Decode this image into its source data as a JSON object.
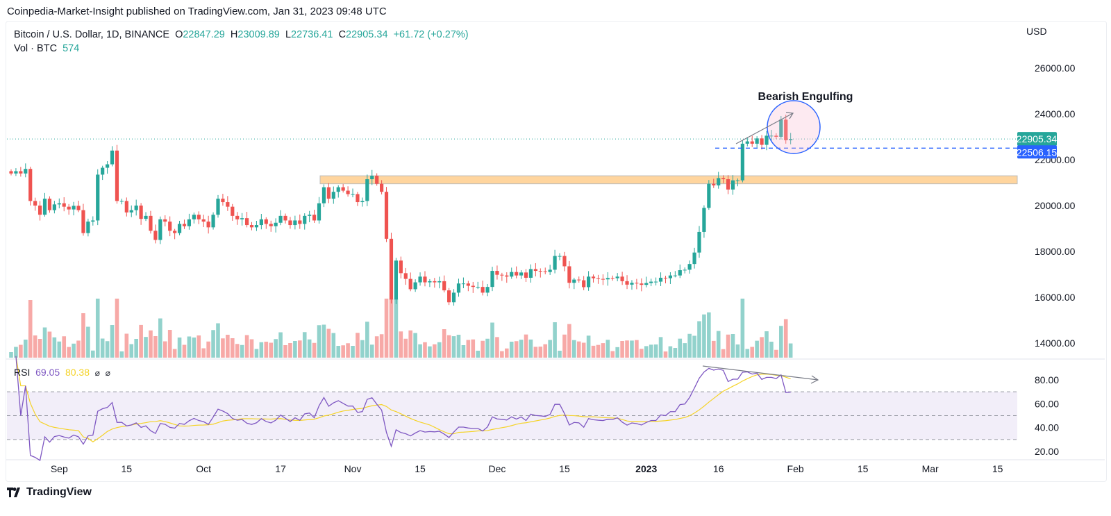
{
  "header": {
    "published": "Coinpedia-Market-Insight published on TradingView.com, Jan 31, 2023 09:48 UTC"
  },
  "legend": {
    "symbol": "Bitcoin / U.S. Dollar, 1D, BINANCE",
    "o_label": "O",
    "o": "22847.29",
    "h_label": "H",
    "h": "23009.89",
    "l_label": "L",
    "l": "22736.41",
    "c_label": "C",
    "c": "22905.34",
    "change": "+61.72 (+0.27%)",
    "vol_label": "Vol · BTC",
    "vol": "574"
  },
  "currency": "USD",
  "annotation": "Bearish Engulfing",
  "rsi_legend": {
    "label": "RSI",
    "value": "69.05",
    "ma": "80.38",
    "sym1": "⌀",
    "sym2": "⌀"
  },
  "footer": {
    "brand": "TradingView"
  },
  "colors": {
    "up": "#26a69a",
    "down": "#ef5350",
    "rsi": "#7e57c2",
    "rsi_ma": "#f5d327",
    "zone": "#ffd59e",
    "circle": "#2962ff"
  },
  "chart_data": {
    "type": "candlestick",
    "start_date": "2022-08-22",
    "closes": [
      21400,
      21500,
      21400,
      21600,
      20200,
      20000,
      19600,
      20300,
      19800,
      20050,
      20100,
      19950,
      19830,
      19990,
      19800,
      18800,
      19300,
      19350,
      21350,
      21650,
      21800,
      22400,
      20200,
      20200,
      19700,
      19800,
      20000,
      19420,
      19550,
      18900,
      18500,
      19400,
      19300,
      18900,
      18800,
      19200,
      19100,
      19400,
      19600,
      19400,
      19300,
      19050,
      19600,
      20300,
      20150,
      19950,
      19550,
      19400,
      19450,
      19150,
      19050,
      19150,
      19400,
      19200,
      19100,
      19250,
      19550,
      19350,
      19150,
      19350,
      19200,
      19550,
      19600,
      19350,
      20100,
      20800,
      20300,
      20600,
      20800,
      20650,
      20500,
      20500,
      20150,
      20200,
      21150,
      21300,
      20950,
      20600,
      18550,
      15900,
      17600,
      17050,
      16800,
      16350,
      16650,
      16900,
      16650,
      16700,
      16650,
      16700,
      16300,
      15780,
      16200,
      16600,
      16600,
      16500,
      16450,
      16450,
      16200,
      16450,
      17150,
      16980,
      16950,
      16900,
      17100,
      16950,
      17080,
      16850,
      17230,
      17150,
      17130,
      17100,
      17200,
      17800,
      17800,
      17350,
      16630,
      16770,
      16740,
      16440,
      16900,
      16830,
      16800,
      16780,
      16840,
      16830,
      16900,
      16700,
      16550,
      16630,
      16600,
      16540,
      16620,
      16680,
      16680,
      16850,
      16830,
      16950,
      16950,
      17180,
      17200,
      17450,
      17950,
      18850,
      19900,
      20950,
      20880,
      21200,
      21150,
      20700,
      21100,
      21100,
      22700,
      22800,
      22700,
      22930,
      22650,
      23050,
      23050,
      23000,
      23750,
      22850,
      22905
    ],
    "price_ticks": [
      "26000.00",
      "24000.00",
      "22000.00",
      "20000.00",
      "18000.00",
      "16000.00",
      "14000.00"
    ],
    "price_tick_values": [
      26000,
      24000,
      22000,
      20000,
      18000,
      16000,
      14000
    ],
    "last_price": "22905.34",
    "support_price": "22506.15",
    "support_value": 22506.15,
    "zone": [
      20950,
      21300
    ],
    "rsi_ticks": [
      "80.00",
      "60.00",
      "40.00",
      "20.00"
    ],
    "rsi_tick_values": [
      80,
      60,
      40,
      20
    ],
    "rsi_bands": [
      70,
      50,
      30
    ],
    "x_ticks": [
      {
        "label": "Sep",
        "day": 10
      },
      {
        "label": "15",
        "day": 24
      },
      {
        "label": "Oct",
        "day": 40
      },
      {
        "label": "17",
        "day": 56
      },
      {
        "label": "Nov",
        "day": 71
      },
      {
        "label": "15",
        "day": 85
      },
      {
        "label": "Dec",
        "day": 101
      },
      {
        "label": "15",
        "day": 115
      },
      {
        "label": "2023",
        "day": 132
      },
      {
        "label": "16",
        "day": 147
      },
      {
        "label": "Feb",
        "day": 163
      },
      {
        "label": "15",
        "day": 177
      },
      {
        "label": "Mar",
        "day": 191
      },
      {
        "label": "15",
        "day": 205
      }
    ]
  }
}
